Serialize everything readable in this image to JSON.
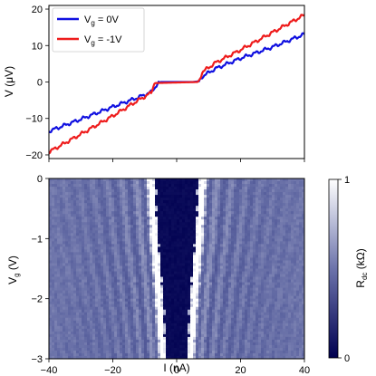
{
  "chart_data": [
    {
      "type": "line",
      "ylabel": "V (μV)",
      "xlabel": "",
      "xlim": [
        -40,
        40
      ],
      "ylim": [
        -21,
        21
      ],
      "xticks": [
        -40,
        -20,
        0,
        20,
        40
      ],
      "xtick_labels_shown": false,
      "yticks": [
        -20,
        -10,
        0,
        10,
        20
      ],
      "ytick_labels": [
        "−20",
        "−10",
        "0",
        "10",
        "20"
      ],
      "legend_position": "top-left",
      "grid": false,
      "series": [
        {
          "name": "V$_g$ = 0V",
          "label_main": "V",
          "label_sub": "g",
          "label_rest": " = 0V",
          "color": "#1010e0",
          "x": [
            -40,
            -30,
            -20,
            -12,
            -8,
            -6,
            -5,
            5,
            7,
            8,
            12,
            20,
            30,
            40
          ],
          "y": [
            -13.5,
            -10.2,
            -6.8,
            -4.2,
            -2.8,
            -0.5,
            0,
            0,
            0.2,
            1.5,
            3.6,
            6.5,
            9.6,
            13.1
          ]
        },
        {
          "name": "V$_g$ = -1V",
          "label_main": "V",
          "label_sub": "g",
          "label_rest": " = -1V",
          "color": "#ee1c1c",
          "x": [
            -40,
            -30,
            -20,
            -12,
            -8,
            -7,
            6.5,
            7,
            8,
            12,
            20,
            30,
            40
          ],
          "y": [
            -19.2,
            -14.3,
            -9.3,
            -5.0,
            -3.0,
            -0.3,
            0,
            0.3,
            2.7,
            5.2,
            8.8,
            13.6,
            18.4
          ]
        }
      ]
    },
    {
      "type": "heatmap",
      "xlabel": "I (nA)",
      "ylabel_main": "V",
      "ylabel_sub": "g",
      "ylabel_rest": " (V)",
      "xlim": [
        -40,
        40
      ],
      "ylim": [
        -3,
        0
      ],
      "xticks": [
        -40,
        -20,
        0,
        20,
        40
      ],
      "xtick_labels": [
        "−40",
        "−20",
        "0",
        "20",
        "40"
      ],
      "yticks": [
        0,
        -1,
        -2,
        -3
      ],
      "ytick_labels": [
        "0",
        "−1",
        "−2",
        "−3"
      ],
      "colormap": "white-to-navy",
      "colorbar": {
        "label_main": "R",
        "label_sub": "dc",
        "label_rest": " (kΩ)",
        "range": [
          0,
          1
        ],
        "tick_labels": [
          "1",
          "0"
        ],
        "color_low": "#000050",
        "color_high": "#ffffff"
      },
      "description_features": {
        "superconducting_half_width_top": 7,
        "superconducting_half_width_bottom": 3,
        "fringe_count_per_side": 4
      }
    }
  ]
}
